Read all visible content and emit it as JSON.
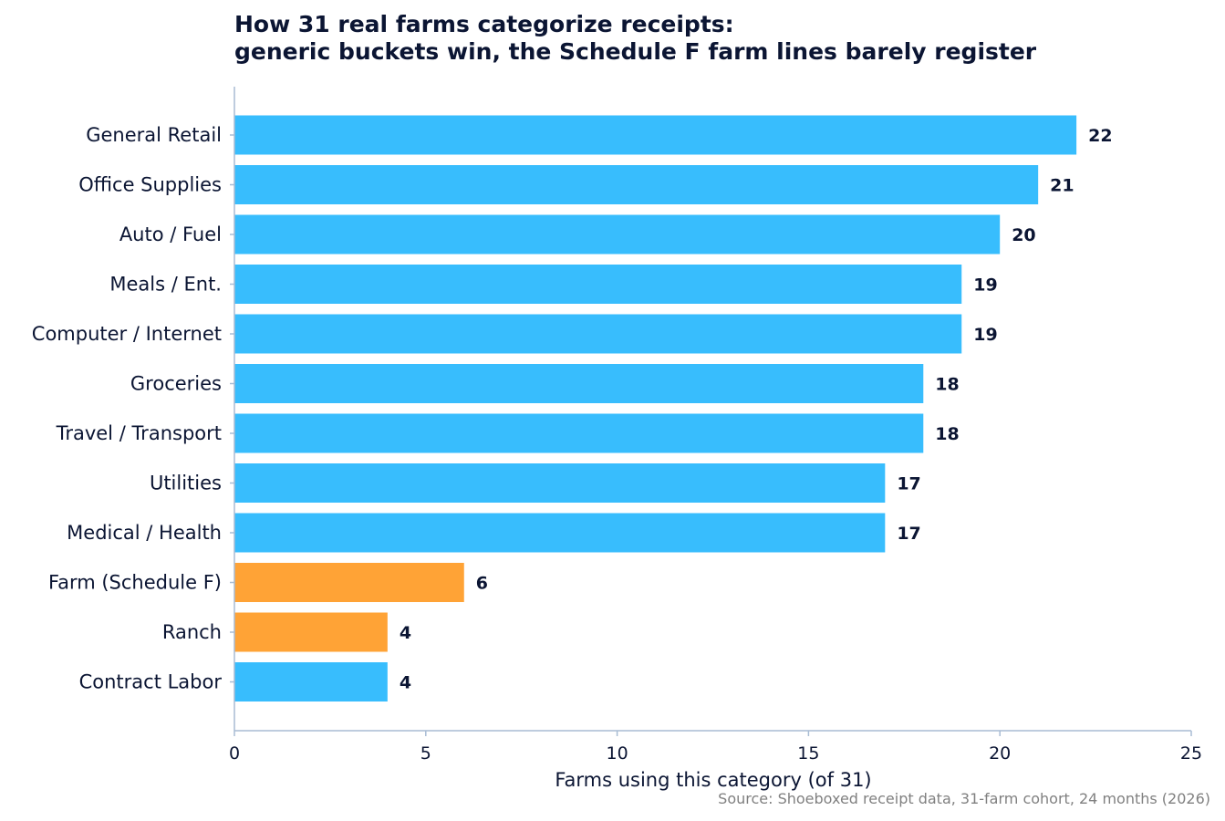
{
  "chart_data": {
    "type": "bar",
    "orientation": "horizontal",
    "title_lines": [
      "How 31 real farms categorize receipts:",
      "generic buckets win, the Schedule F farm lines barely register"
    ],
    "xlabel": "Farms using this category (of 31)",
    "ylabel": "",
    "xlim": [
      0,
      25
    ],
    "xticks": [
      0,
      5,
      10,
      15,
      20,
      25
    ],
    "grid": false,
    "categories": [
      "General Retail",
      "Office Supplies",
      "Auto / Fuel",
      "Meals / Ent.",
      "Computer / Internet",
      "Groceries",
      "Travel / Transport",
      "Utilities",
      "Medical / Health",
      "Farm (Schedule F)",
      "Ranch",
      "Contract Labor"
    ],
    "values": [
      22,
      21,
      20,
      19,
      19,
      18,
      18,
      17,
      17,
      6,
      4,
      4
    ],
    "highlighted": [
      false,
      false,
      false,
      false,
      false,
      false,
      false,
      false,
      false,
      true,
      true,
      false
    ],
    "colors": {
      "default": "#38bdfd",
      "highlight": "#ffa336",
      "axis": "#a8bcd4",
      "text": "#0b1533"
    },
    "source": "Source: Shoeboxed receipt data, 31-farm cohort, 24 months (2026)"
  }
}
